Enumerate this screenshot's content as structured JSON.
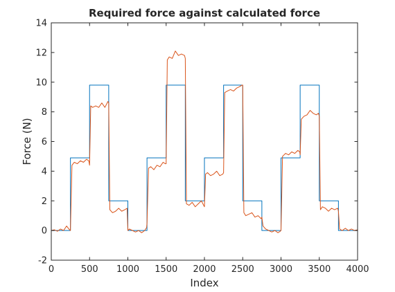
{
  "chart_data": {
    "type": "line",
    "title": "Required force against calculated force",
    "xlabel": "Index",
    "ylabel": "Force (N)",
    "xlim": [
      0,
      4000
    ],
    "ylim": [
      -2,
      14
    ],
    "xticks": [
      0,
      500,
      1000,
      1500,
      2000,
      2500,
      3000,
      3500,
      4000
    ],
    "yticks": [
      -2,
      0,
      2,
      4,
      6,
      8,
      10,
      12,
      14
    ],
    "grid": false,
    "legend": "none",
    "colors": {
      "required": "#0072BD",
      "calculated": "#D95319",
      "axes": "#262626"
    },
    "series": [
      {
        "x": [
          0,
          250,
          250,
          500,
          500,
          750,
          750,
          1000,
          1000,
          1250,
          1250,
          1500,
          1500,
          1750,
          1750,
          2000,
          2000,
          2250,
          2250,
          2500,
          2500,
          2750,
          2750,
          3000,
          3000,
          3250,
          3250,
          3500,
          3500,
          3750,
          3750,
          4000
        ],
        "values": [
          0,
          0,
          4.9,
          4.9,
          9.8,
          9.8,
          2.0,
          2.0,
          0,
          0,
          4.9,
          4.9,
          9.8,
          9.8,
          2.0,
          2.0,
          4.9,
          4.9,
          9.8,
          9.8,
          2.0,
          2.0,
          0,
          0,
          4.9,
          4.9,
          9.8,
          9.8,
          2.0,
          2.0,
          0,
          0
        ]
      },
      {
        "x": [
          0,
          40,
          80,
          120,
          160,
          200,
          230,
          250,
          270,
          300,
          340,
          380,
          420,
          460,
          490,
          500,
          515,
          540,
          580,
          620,
          660,
          700,
          740,
          750,
          765,
          800,
          840,
          880,
          920,
          960,
          990,
          1000,
          1020,
          1060,
          1100,
          1140,
          1180,
          1220,
          1245,
          1250,
          1270,
          1300,
          1340,
          1380,
          1420,
          1460,
          1490,
          1500,
          1515,
          1540,
          1580,
          1620,
          1660,
          1700,
          1740,
          1750,
          1765,
          1800,
          1840,
          1880,
          1920,
          1960,
          1990,
          2000,
          2015,
          2040,
          2080,
          2120,
          2160,
          2200,
          2240,
          2250,
          2265,
          2300,
          2340,
          2380,
          2420,
          2460,
          2490,
          2500,
          2515,
          2540,
          2580,
          2620,
          2660,
          2700,
          2740,
          2750,
          2765,
          2800,
          2840,
          2880,
          2920,
          2960,
          2990,
          3000,
          3020,
          3060,
          3100,
          3140,
          3180,
          3220,
          3245,
          3250,
          3265,
          3300,
          3340,
          3380,
          3420,
          3460,
          3490,
          3500,
          3515,
          3540,
          3580,
          3620,
          3660,
          3700,
          3740,
          3750,
          3765,
          3800,
          3840,
          3880,
          3920,
          3960,
          4000
        ],
        "values": [
          0.0,
          0.05,
          -0.05,
          0.1,
          0.0,
          0.3,
          0.1,
          0.0,
          4.4,
          4.6,
          4.5,
          4.7,
          4.6,
          4.8,
          4.7,
          4.4,
          8.4,
          8.3,
          8.4,
          8.3,
          8.6,
          8.3,
          8.7,
          8.6,
          1.4,
          1.2,
          1.3,
          1.5,
          1.3,
          1.4,
          1.5,
          0.0,
          0.1,
          0.0,
          -0.1,
          0.0,
          -0.15,
          0.0,
          0.2,
          0.5,
          4.2,
          4.3,
          4.1,
          4.4,
          4.3,
          4.6,
          4.5,
          4.5,
          11.5,
          11.7,
          11.6,
          12.1,
          11.8,
          11.9,
          11.8,
          11.6,
          1.8,
          1.7,
          1.9,
          1.6,
          1.8,
          2.0,
          1.7,
          1.6,
          3.8,
          3.9,
          3.7,
          3.8,
          4.0,
          3.7,
          3.8,
          3.9,
          9.3,
          9.4,
          9.5,
          9.4,
          9.6,
          9.7,
          9.8,
          9.8,
          1.2,
          1.0,
          1.1,
          1.2,
          0.9,
          1.0,
          0.8,
          0.9,
          0.3,
          0.1,
          0.0,
          -0.1,
          0.0,
          -0.15,
          -0.05,
          0.0,
          5.0,
          5.2,
          5.1,
          5.3,
          5.2,
          5.4,
          5.3,
          5.1,
          7.5,
          7.7,
          7.8,
          8.1,
          7.9,
          7.8,
          7.9,
          7.7,
          1.4,
          1.6,
          1.5,
          1.3,
          1.5,
          1.4,
          1.5,
          1.3,
          0.1,
          0.0,
          0.15,
          0.0,
          0.1,
          0.0,
          0.05
        ]
      }
    ]
  }
}
